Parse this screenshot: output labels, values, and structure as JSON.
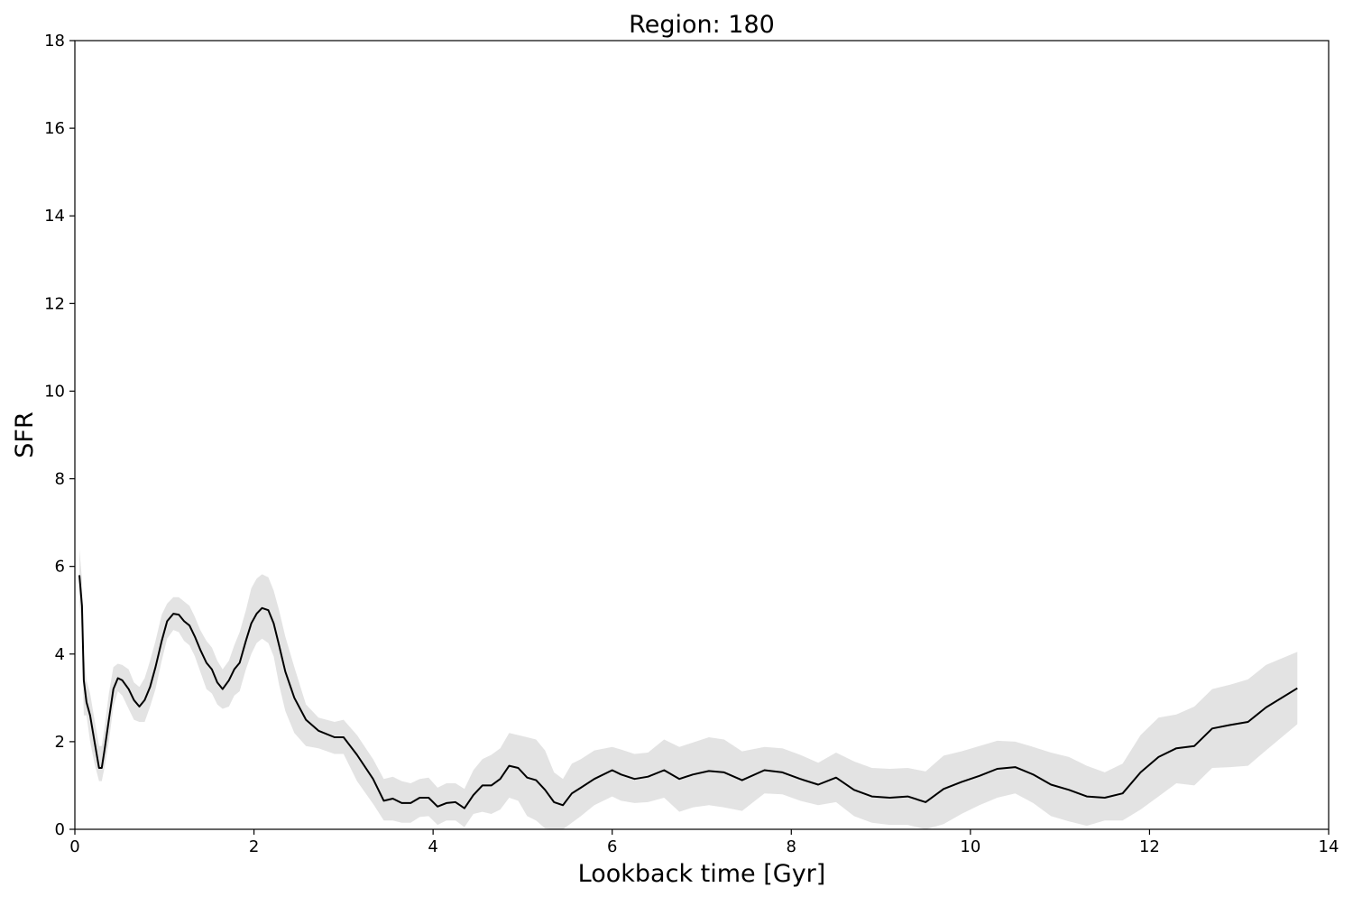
{
  "chart_data": {
    "type": "line",
    "title": "Region: 180",
    "xlabel": "Lookback time [Gyr]",
    "ylabel": "SFR",
    "xlim": [
      0,
      14
    ],
    "ylim": [
      0,
      18
    ],
    "xticks": [
      0,
      2,
      4,
      6,
      8,
      10,
      12,
      14
    ],
    "yticks": [
      0,
      2,
      4,
      6,
      8,
      10,
      12,
      14,
      16,
      18
    ],
    "grid": false,
    "line_color": "#000000",
    "band_color": "#e3e3e3",
    "series": [
      {
        "x": [
          0.05,
          0.08,
          0.1,
          0.13,
          0.17,
          0.22,
          0.27,
          0.3,
          0.33,
          0.38,
          0.43,
          0.48,
          0.53,
          0.6,
          0.66,
          0.72,
          0.78,
          0.84,
          0.9,
          0.97,
          1.03,
          1.1,
          1.16,
          1.22,
          1.28,
          1.34,
          1.4,
          1.47,
          1.53,
          1.59,
          1.65,
          1.72,
          1.78,
          1.84,
          1.91,
          1.97,
          2.03,
          2.09,
          2.16,
          2.22,
          2.28,
          2.35,
          2.45,
          2.58,
          2.72,
          2.9,
          3.0,
          3.15,
          3.33,
          3.45,
          3.55,
          3.65,
          3.75,
          3.85,
          3.95,
          4.05,
          4.15,
          4.25,
          4.35,
          4.45,
          4.55,
          4.65,
          4.75,
          4.85,
          4.95,
          5.05,
          5.15,
          5.25,
          5.35,
          5.45,
          5.55,
          5.65,
          5.8,
          6.0,
          6.1,
          6.25,
          6.4,
          6.58,
          6.75,
          6.9,
          7.08,
          7.25,
          7.45,
          7.7,
          7.9,
          8.1,
          8.3,
          8.5,
          8.7,
          8.9,
          9.1,
          9.3,
          9.5,
          9.7,
          9.9,
          10.1,
          10.3,
          10.5,
          10.7,
          10.9,
          11.1,
          11.3,
          11.5,
          11.7,
          11.9,
          12.1,
          12.3,
          12.5,
          12.7,
          12.9,
          13.1,
          13.3,
          13.65
        ],
        "y": [
          5.8,
          5.1,
          3.4,
          2.9,
          2.6,
          2.0,
          1.4,
          1.4,
          1.8,
          2.5,
          3.2,
          3.45,
          3.4,
          3.2,
          2.95,
          2.8,
          2.95,
          3.25,
          3.7,
          4.3,
          4.75,
          4.92,
          4.9,
          4.75,
          4.65,
          4.4,
          4.1,
          3.8,
          3.65,
          3.35,
          3.2,
          3.4,
          3.65,
          3.8,
          4.3,
          4.7,
          4.92,
          5.05,
          5.0,
          4.7,
          4.2,
          3.6,
          3.0,
          2.5,
          2.25,
          2.1,
          2.1,
          1.7,
          1.15,
          0.65,
          0.7,
          0.6,
          0.6,
          0.72,
          0.72,
          0.52,
          0.6,
          0.62,
          0.48,
          0.78,
          1.0,
          1.0,
          1.15,
          1.45,
          1.4,
          1.18,
          1.12,
          0.9,
          0.62,
          0.55,
          0.82,
          0.95,
          1.15,
          1.35,
          1.25,
          1.15,
          1.2,
          1.35,
          1.15,
          1.25,
          1.33,
          1.3,
          1.12,
          1.35,
          1.3,
          1.15,
          1.02,
          1.18,
          0.9,
          0.75,
          0.72,
          0.75,
          0.62,
          0.92,
          1.08,
          1.22,
          1.38,
          1.42,
          1.25,
          1.02,
          0.9,
          0.75,
          0.72,
          0.82,
          1.3,
          1.65,
          1.85,
          1.9,
          2.3,
          2.38,
          2.45,
          2.78,
          3.22
        ],
        "upper": [
          6.4,
          5.7,
          4.0,
          3.4,
          3.1,
          2.5,
          1.9,
          1.9,
          2.3,
          3.1,
          3.7,
          3.78,
          3.75,
          3.65,
          3.35,
          3.25,
          3.45,
          3.85,
          4.3,
          4.9,
          5.15,
          5.3,
          5.3,
          5.2,
          5.1,
          4.85,
          4.55,
          4.3,
          4.15,
          3.85,
          3.65,
          3.85,
          4.2,
          4.5,
          5.0,
          5.5,
          5.72,
          5.82,
          5.75,
          5.45,
          5.0,
          4.4,
          3.7,
          2.85,
          2.55,
          2.45,
          2.5,
          2.15,
          1.6,
          1.15,
          1.2,
          1.1,
          1.05,
          1.15,
          1.18,
          0.95,
          1.05,
          1.05,
          0.92,
          1.35,
          1.6,
          1.7,
          1.85,
          2.2,
          2.15,
          2.1,
          2.05,
          1.8,
          1.3,
          1.15,
          1.5,
          1.6,
          1.8,
          1.88,
          1.82,
          1.72,
          1.75,
          2.05,
          1.88,
          1.98,
          2.1,
          2.05,
          1.78,
          1.88,
          1.85,
          1.7,
          1.52,
          1.75,
          1.55,
          1.4,
          1.38,
          1.4,
          1.32,
          1.68,
          1.78,
          1.9,
          2.02,
          2.0,
          1.88,
          1.75,
          1.65,
          1.45,
          1.3,
          1.5,
          2.15,
          2.55,
          2.62,
          2.8,
          3.2,
          3.3,
          3.42,
          3.75,
          4.05
        ],
        "lower": [
          5.2,
          4.5,
          2.6,
          2.6,
          2.0,
          1.5,
          1.1,
          1.1,
          1.4,
          2.0,
          2.8,
          3.15,
          3.05,
          2.75,
          2.5,
          2.45,
          2.45,
          2.8,
          3.2,
          3.85,
          4.35,
          4.55,
          4.5,
          4.3,
          4.2,
          3.95,
          3.6,
          3.2,
          3.1,
          2.85,
          2.75,
          2.8,
          3.05,
          3.15,
          3.65,
          4.0,
          4.25,
          4.35,
          4.25,
          3.95,
          3.3,
          2.7,
          2.2,
          1.9,
          1.85,
          1.72,
          1.72,
          1.1,
          0.58,
          0.2,
          0.2,
          0.15,
          0.15,
          0.28,
          0.3,
          0.1,
          0.2,
          0.2,
          0.05,
          0.35,
          0.4,
          0.35,
          0.45,
          0.72,
          0.65,
          0.3,
          0.2,
          0.02,
          0.0,
          0.0,
          0.15,
          0.3,
          0.55,
          0.75,
          0.65,
          0.6,
          0.62,
          0.72,
          0.4,
          0.5,
          0.55,
          0.5,
          0.42,
          0.82,
          0.8,
          0.65,
          0.55,
          0.62,
          0.3,
          0.15,
          0.1,
          0.1,
          0.0,
          0.12,
          0.35,
          0.55,
          0.72,
          0.82,
          0.6,
          0.3,
          0.18,
          0.08,
          0.2,
          0.2,
          0.45,
          0.75,
          1.05,
          1.0,
          1.4,
          1.42,
          1.45,
          1.8,
          2.4
        ]
      }
    ]
  }
}
